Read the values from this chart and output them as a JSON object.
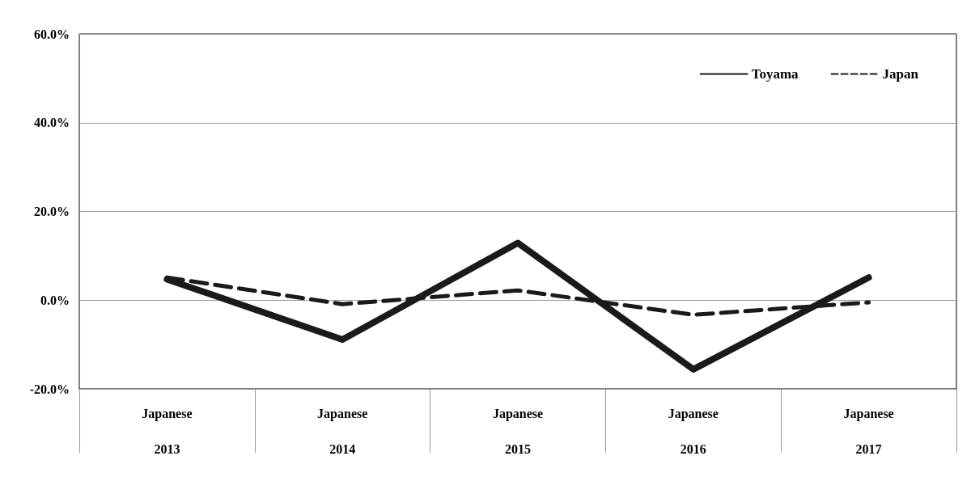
{
  "chart_data": {
    "type": "line",
    "categories": [
      "Japanese\n2013",
      "Japanese\n2014",
      "Japanese\n2015",
      "Japanese\n2016",
      "Japanese\n2017"
    ],
    "series": [
      {
        "name": "Toyama",
        "color": "#1a1a1a",
        "line_style": "solid",
        "values": [
          4.7,
          -8.9,
          12.9,
          -15.6,
          5.1
        ]
      },
      {
        "name": "Japan",
        "color": "#1a1a1a",
        "line_style": "dashed",
        "values": [
          5.1,
          -0.9,
          2.2,
          -3.3,
          -0.5
        ]
      }
    ],
    "ylim": [
      -20,
      60
    ],
    "yticks": [
      {
        "value": -20,
        "label": "-20.0%"
      },
      {
        "value": 0,
        "label": "0.0%"
      },
      {
        "value": 20,
        "label": "20.0%"
      },
      {
        "value": 40,
        "label": "40.0%"
      },
      {
        "value": 60,
        "label": "60.0%"
      }
    ],
    "grid": "y",
    "legend": "top right",
    "marker": "none"
  }
}
